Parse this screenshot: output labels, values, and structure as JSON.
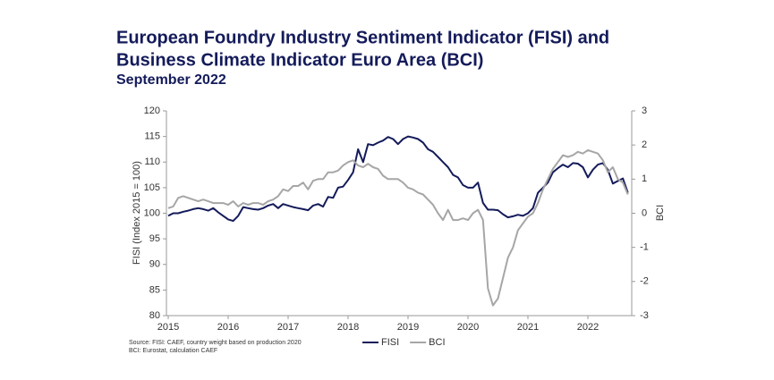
{
  "chart_data": {
    "type": "line",
    "title": [
      "European Foundry Industry Sentiment Indicator (FISI) and",
      "Business Climate Indicator Euro Area (BCI)"
    ],
    "subtitle": "September 2022",
    "ylabel": "FISI (Index 2015 = 100)",
    "y2label": "BCI",
    "source": [
      "Source: FISI: CAEF, country weight based on production 2020",
      "BCI: Eurostat, calculation CAEF"
    ],
    "categories": [
      "2015",
      null,
      null,
      null,
      null,
      null,
      null,
      null,
      null,
      null,
      null,
      null,
      "2016",
      null,
      null,
      null,
      null,
      null,
      null,
      null,
      null,
      null,
      null,
      null,
      "2017",
      null,
      null,
      null,
      null,
      null,
      null,
      null,
      null,
      null,
      null,
      null,
      "2018",
      null,
      null,
      null,
      null,
      null,
      null,
      null,
      null,
      null,
      null,
      null,
      "2019",
      null,
      null,
      null,
      null,
      null,
      null,
      null,
      null,
      null,
      null,
      null,
      "2020",
      null,
      null,
      null,
      null,
      null,
      null,
      null,
      null,
      null,
      null,
      null,
      "2021",
      null,
      null,
      null,
      null,
      null,
      null,
      null,
      null,
      null,
      null,
      null,
      "2022",
      null,
      null,
      null,
      null,
      null,
      null,
      null,
      null
    ],
    "xticks": [
      0,
      12,
      24,
      36,
      48,
      60,
      72,
      84
    ],
    "ylim": [
      80,
      120
    ],
    "yticks": [
      80,
      85,
      90,
      95,
      100,
      105,
      110,
      115,
      120
    ],
    "y2lim": [
      -3,
      3
    ],
    "y2ticks": [
      -3,
      -2,
      -1,
      0,
      1,
      2,
      3
    ],
    "legend": "bottom",
    "series": [
      {
        "name": "FISI",
        "color": "#141b5a",
        "values": [
          99.5,
          100,
          100,
          100.3,
          100.5,
          100.8,
          101,
          100.8,
          100.5,
          101,
          100.2,
          99.5,
          98.8,
          98.5,
          99.5,
          101.2,
          101,
          100.8,
          100.7,
          101,
          101.5,
          101.8,
          101,
          101.8,
          101.5,
          101.2,
          101,
          100.8,
          100.6,
          101.5,
          101.8,
          101.3,
          103.2,
          103,
          105,
          105.2,
          106.5,
          108,
          112.5,
          110,
          113.5,
          113.3,
          113.8,
          114.2,
          114.9,
          114.5,
          113.5,
          114.5,
          115,
          114.8,
          114.5,
          113.8,
          112.5,
          112,
          111,
          110,
          109,
          107.5,
          107,
          105.5,
          105,
          105,
          106,
          102,
          100.7,
          100.7,
          100.6,
          99.8,
          99.2,
          99.4,
          99.7,
          99.5,
          100,
          101,
          104,
          105,
          106,
          108,
          108.8,
          109.5,
          109,
          109.8,
          109.7,
          109,
          107,
          108.5,
          109.5,
          109.8,
          108.5,
          105.8,
          106.3,
          106.8,
          104
        ]
      },
      {
        "name": "BCI",
        "color": "#a6a6a6",
        "axis": "y2",
        "values": [
          0.15,
          0.2,
          0.45,
          0.5,
          0.45,
          0.4,
          0.35,
          0.4,
          0.35,
          0.3,
          0.3,
          0.3,
          0.25,
          0.35,
          0.2,
          0.3,
          0.25,
          0.3,
          0.3,
          0.25,
          0.35,
          0.4,
          0.5,
          0.7,
          0.65,
          0.8,
          0.8,
          0.9,
          0.7,
          0.95,
          1.0,
          1.0,
          1.2,
          1.2,
          1.25,
          1.4,
          1.5,
          1.55,
          1.4,
          1.35,
          1.45,
          1.35,
          1.3,
          1.1,
          1.0,
          1.0,
          1.0,
          0.9,
          0.75,
          0.7,
          0.6,
          0.55,
          0.4,
          0.25,
          0.0,
          -0.2,
          0.1,
          -0.2,
          -0.2,
          -0.15,
          -0.2,
          0.0,
          0.1,
          -0.2,
          -2.2,
          -2.7,
          -2.5,
          -1.9,
          -1.3,
          -1.0,
          -0.5,
          -0.3,
          -0.1,
          0.0,
          0.3,
          0.7,
          1.0,
          1.3,
          1.5,
          1.7,
          1.65,
          1.7,
          1.8,
          1.75,
          1.85,
          1.8,
          1.75,
          1.55,
          1.2,
          1.35,
          1.0,
          0.9,
          0.55
        ]
      }
    ]
  }
}
